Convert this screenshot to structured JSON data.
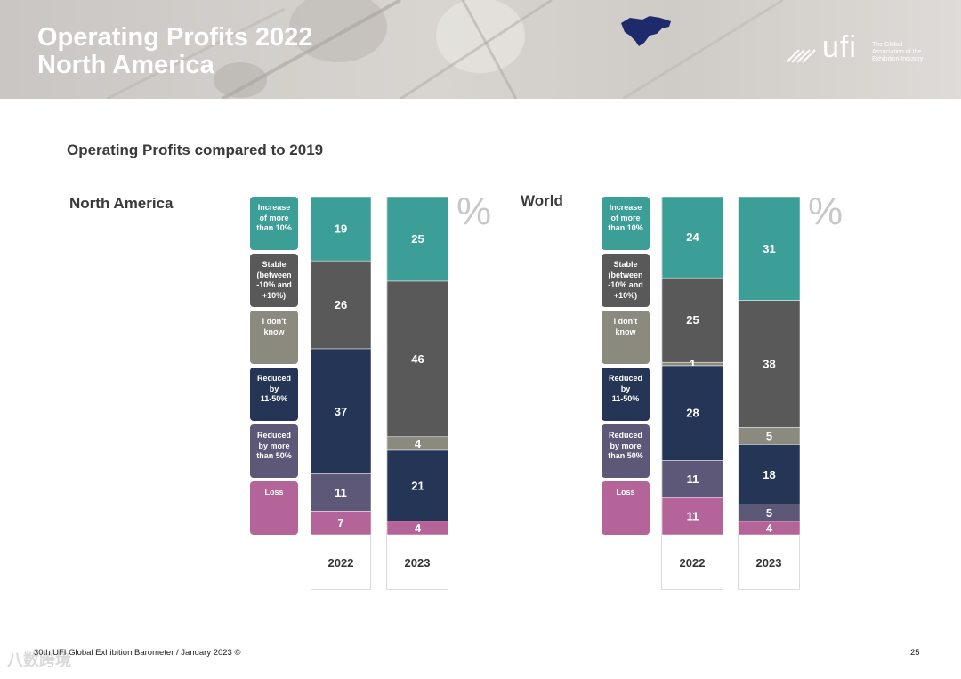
{
  "header": {
    "title_line1": "Operating Profits 2022",
    "title_line2": "North America",
    "logo_word": "ufi",
    "logo_tagline": [
      "The Global",
      "Association of the",
      "Exhibition Industry"
    ]
  },
  "subtitle": "Operating Profits compared to 2019",
  "percent_symbol": "%",
  "legend": [
    {
      "key": "increase",
      "lines": [
        "Increase",
        "of more",
        "than 10%"
      ],
      "color": "#3b9e97"
    },
    {
      "key": "stable",
      "lines": [
        "Stable",
        "(between",
        "-10% and",
        "+10%)"
      ],
      "color": "#595959"
    },
    {
      "key": "dontknow",
      "lines": [
        "I don't",
        "know"
      ],
      "color": "#8a8a7e"
    },
    {
      "key": "reduced11",
      "lines": [
        "Reduced",
        "by",
        "11-50%"
      ],
      "color": "#243556"
    },
    {
      "key": "reduced50",
      "lines": [
        "Reduced",
        "by more",
        "than 50%"
      ],
      "color": "#5e5878"
    },
    {
      "key": "loss",
      "lines": [
        "Loss"
      ],
      "color": "#b5649a"
    }
  ],
  "chart_data": [
    {
      "type": "bar",
      "stacked": true,
      "title": "North America",
      "categories": [
        "2022",
        "2023"
      ],
      "series": [
        {
          "name": "Increase of more than 10%",
          "values": [
            19,
            25
          ]
        },
        {
          "name": "Stable (between -10% and +10%)",
          "values": [
            26,
            46
          ]
        },
        {
          "name": "I don't know",
          "values": [
            0,
            4
          ]
        },
        {
          "name": "Reduced by 11-50%",
          "values": [
            37,
            21
          ]
        },
        {
          "name": "Reduced by more than 50%",
          "values": [
            11,
            0
          ]
        },
        {
          "name": "Loss",
          "values": [
            7,
            4
          ]
        }
      ],
      "unit": "%"
    },
    {
      "type": "bar",
      "stacked": true,
      "title": "World",
      "categories": [
        "2022",
        "2023"
      ],
      "series": [
        {
          "name": "Increase of more than 10%",
          "values": [
            24,
            31
          ]
        },
        {
          "name": "Stable (between -10% and +10%)",
          "values": [
            25,
            38
          ]
        },
        {
          "name": "I don't know",
          "values": [
            1,
            5
          ]
        },
        {
          "name": "Reduced by 11-50%",
          "values": [
            28,
            18
          ]
        },
        {
          "name": "Reduced by more than 50%",
          "values": [
            11,
            5
          ]
        },
        {
          "name": "Loss",
          "values": [
            11,
            4
          ]
        }
      ],
      "unit": "%"
    }
  ],
  "footer": {
    "text": "30th UFI Global Exhibition Barometer / January 2023 ©",
    "page": "25",
    "watermark": "八数跨境"
  }
}
